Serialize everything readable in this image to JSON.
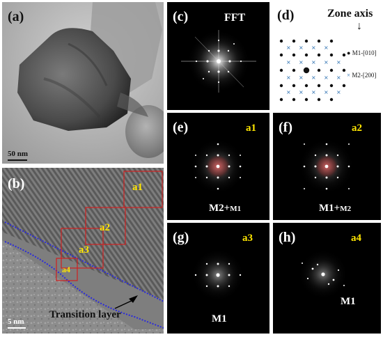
{
  "figure": {
    "panel_a": {
      "label": "(a)",
      "scale": "50 nm"
    },
    "panel_b": {
      "label": "(b)",
      "scale": "5 nm",
      "regions": [
        "a1",
        "a2",
        "a3",
        "a4"
      ],
      "annotation": "Transition layer"
    },
    "panel_c": {
      "label": "(c)",
      "title": "FFT"
    },
    "panel_d": {
      "label": "(d)",
      "title": "Zone axis",
      "arrow": "↓",
      "legend": [
        {
          "marker": "●",
          "text": "M1-[010]"
        },
        {
          "marker": "×",
          "text": "M2-[200]"
        }
      ]
    },
    "panel_e": {
      "label": "(e)",
      "region": "a1",
      "caption_main": "M2+",
      "caption_sub": "M1"
    },
    "panel_f": {
      "label": "(f)",
      "region": "a2",
      "caption_main": "M1+",
      "caption_sub": "M2"
    },
    "panel_g": {
      "label": "(g)",
      "region": "a3",
      "caption": "M1"
    },
    "panel_h": {
      "label": "(h)",
      "region": "a4",
      "caption": "M1"
    }
  }
}
